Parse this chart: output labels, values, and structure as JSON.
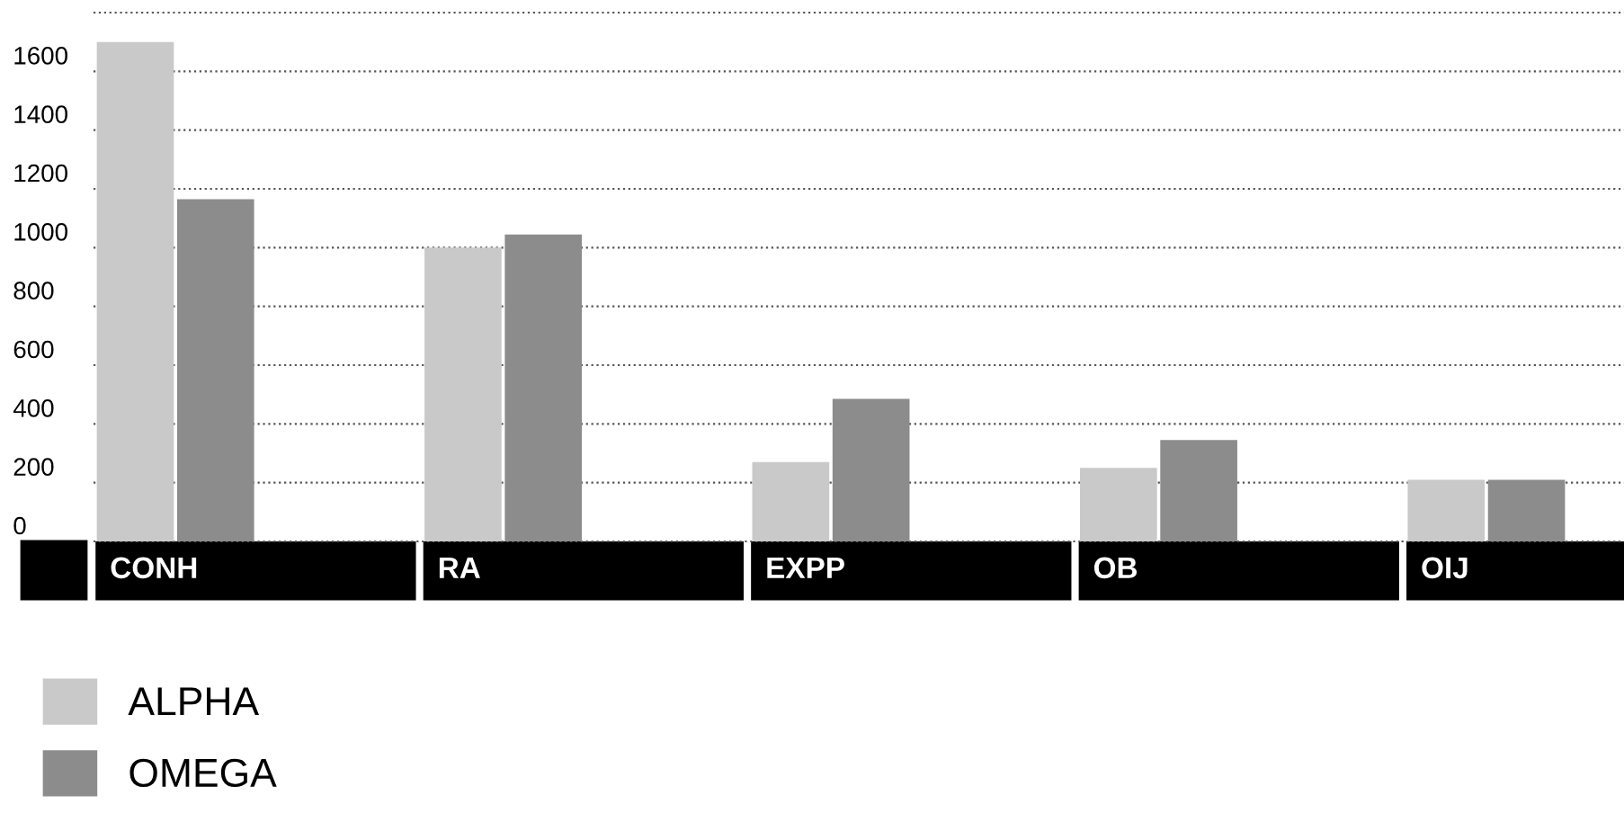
{
  "chart_data": {
    "type": "bar",
    "categories": [
      "CONH",
      "RA",
      "EXPP",
      "OB",
      "OIJ"
    ],
    "series": [
      {
        "name": "ALPHA",
        "color": "#c9c9c9",
        "values": [
          1700,
          1000,
          270,
          250,
          210
        ]
      },
      {
        "name": "OMEGA",
        "color": "#8c8c8c",
        "values": [
          1165,
          1045,
          485,
          345,
          210
        ]
      }
    ],
    "ylim": [
      0,
      1800
    ],
    "yticks": [
      0,
      200,
      400,
      600,
      800,
      1000,
      1200,
      1400,
      1600,
      {
        "value": 1800,
        "label": null
      }
    ],
    "grid": "y",
    "line_style": "dotted",
    "legend": "bottom left"
  }
}
